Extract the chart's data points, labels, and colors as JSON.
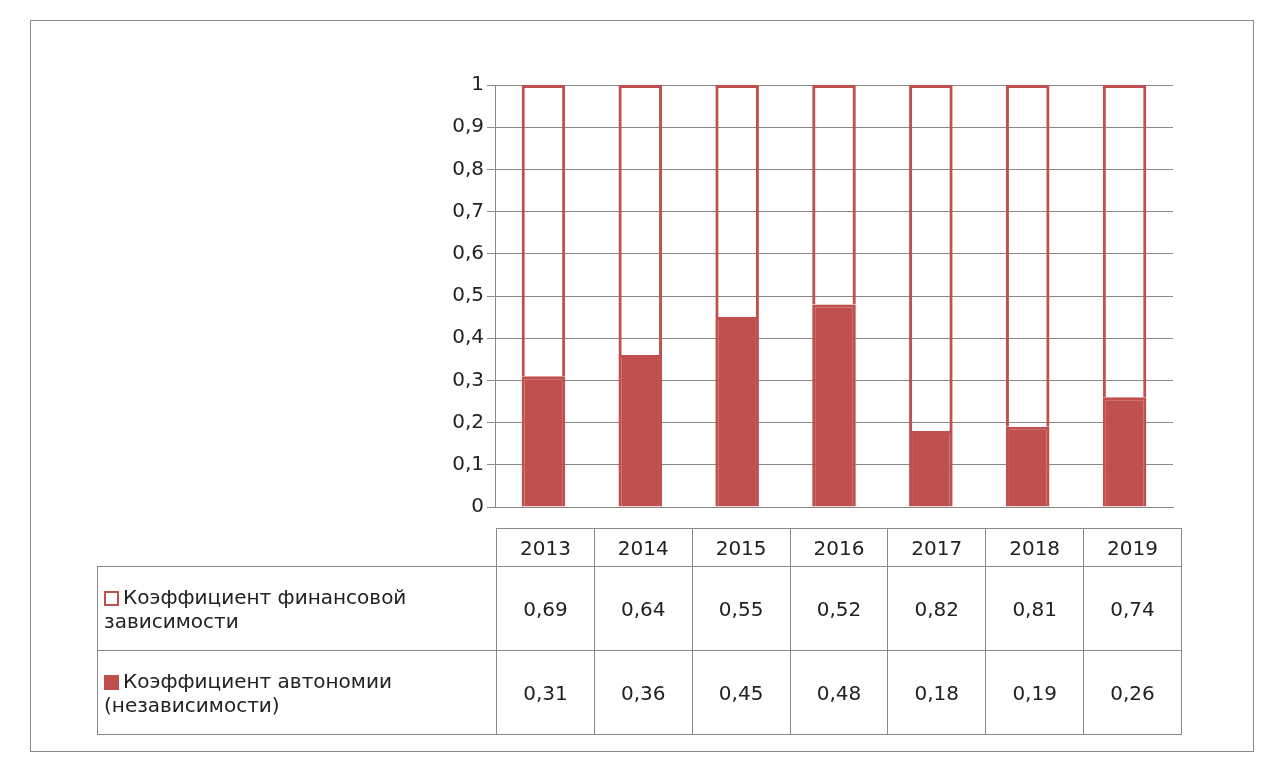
{
  "chart_data": {
    "type": "bar",
    "stacked": true,
    "categories": [
      "2013",
      "2014",
      "2015",
      "2016",
      "2017",
      "2018",
      "2019"
    ],
    "series": [
      {
        "name": "Коэффициент автономии (независимости)",
        "color": "#c0504d",
        "values": [
          0.31,
          0.36,
          0.45,
          0.48,
          0.18,
          0.19,
          0.26
        ],
        "value_labels": [
          "0,31",
          "0,36",
          "0,45",
          "0,48",
          "0,18",
          "0,19",
          "0,26"
        ]
      },
      {
        "name": "Коэффициент финансовой зависимости",
        "color": "#c0504d",
        "values": [
          0.69,
          0.64,
          0.55,
          0.52,
          0.82,
          0.81,
          0.74
        ],
        "value_labels": [
          "0,69",
          "0,64",
          "0,55",
          "0,52",
          "0,82",
          "0,81",
          "0,74"
        ]
      }
    ],
    "ylim": [
      0,
      1
    ],
    "yticks": [
      0,
      {
        "value": 0.1,
        "label": "0,1"
      },
      {
        "value": 0.2,
        "label": "0,2"
      },
      {
        "value": 0.3,
        "label": "0,3"
      },
      {
        "value": 0.4,
        "label": "0,4"
      },
      {
        "value": 0.5,
        "label": "0,5"
      },
      {
        "value": 0.6,
        "label": "0,6"
      },
      {
        "value": 0.7,
        "label": "0,7"
      },
      {
        "value": 0.8,
        "label": "0,8"
      },
      {
        "value": 0.9,
        "label": "0,9"
      },
      1
    ],
    "grid": "y",
    "legend": "bottom"
  }
}
